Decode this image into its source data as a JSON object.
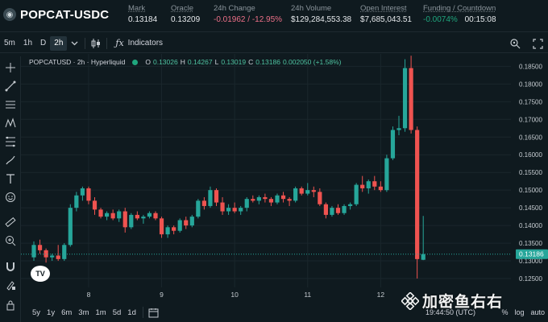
{
  "header": {
    "pair": "POPCAT-USDC",
    "stats": [
      {
        "label": "Mark",
        "value": "0.13184",
        "tone": "neutral",
        "underline": true
      },
      {
        "label": "Oracle",
        "value": "0.13209",
        "tone": "neutral",
        "underline": true
      },
      {
        "label": "24h Change",
        "value": "-0.01962 / -12.95%",
        "tone": "neg",
        "underline": false
      },
      {
        "label": "24h Volume",
        "value": "$129,284,553.38",
        "tone": "neutral",
        "underline": false
      },
      {
        "label": "Open Interest",
        "value": "$7,685,043.51",
        "tone": "neutral",
        "underline": true
      },
      {
        "label": "Funding / Countdown",
        "value_a": "-0.0074%",
        "value_b": "00:15:08",
        "tone": "pos",
        "underline": true
      }
    ]
  },
  "toolbar": {
    "timeframes": [
      "5m",
      "1h",
      "D",
      "2h"
    ],
    "active_timeframe": "2h",
    "indicators_label": "Indicators"
  },
  "legend": {
    "title": "POPCATUSD · 2h · Hyperliquid",
    "o_key": "O",
    "o": "0.13026",
    "h_key": "H",
    "h": "0.14267",
    "l_key": "L",
    "l": "0.13019",
    "c_key": "C",
    "c": "0.13186",
    "change": "0.002050 (+1.58%)"
  },
  "bottom": {
    "ranges": [
      "5y",
      "1y",
      "6m",
      "3m",
      "1m",
      "5d",
      "1d"
    ],
    "clock": "19:44:50 (UTC)",
    "pct": "%",
    "log": "log",
    "auto": "auto"
  },
  "watermark": "加密鱼右右",
  "chart_data": {
    "type": "candlestick",
    "last_price_label": "0.13186",
    "ylim": [
      0.1225,
      0.1885
    ],
    "y_ticks": [
      "0.18500",
      "0.18000",
      "0.17500",
      "0.17000",
      "0.16500",
      "0.16000",
      "0.15500",
      "0.15000",
      "0.14500",
      "0.14000",
      "0.13500",
      "0.13000",
      "0.12500"
    ],
    "x_ticks": [
      {
        "label": "8",
        "index": 9
      },
      {
        "label": "9",
        "index": 21
      },
      {
        "label": "10",
        "index": 33
      },
      {
        "label": "11",
        "index": 45
      },
      {
        "label": "12",
        "index": 57
      }
    ],
    "colors": {
      "up": "#26a69a",
      "down": "#ef5350",
      "bg": "#0f1a1f",
      "grid": "#1a262c"
    },
    "candles": [
      {
        "o": 0.131,
        "h": 0.1355,
        "l": 0.13,
        "c": 0.1345
      },
      {
        "o": 0.1345,
        "h": 0.136,
        "l": 0.132,
        "c": 0.133
      },
      {
        "o": 0.133,
        "h": 0.1335,
        "l": 0.1295,
        "c": 0.131
      },
      {
        "o": 0.131,
        "h": 0.132,
        "l": 0.13,
        "c": 0.1315
      },
      {
        "o": 0.1315,
        "h": 0.1345,
        "l": 0.13,
        "c": 0.1305
      },
      {
        "o": 0.1305,
        "h": 0.135,
        "l": 0.13,
        "c": 0.1345
      },
      {
        "o": 0.1345,
        "h": 0.146,
        "l": 0.134,
        "c": 0.145
      },
      {
        "o": 0.145,
        "h": 0.1495,
        "l": 0.144,
        "c": 0.1485
      },
      {
        "o": 0.1485,
        "h": 0.151,
        "l": 0.147,
        "c": 0.1505
      },
      {
        "o": 0.1505,
        "h": 0.151,
        "l": 0.146,
        "c": 0.147
      },
      {
        "o": 0.147,
        "h": 0.148,
        "l": 0.143,
        "c": 0.1445
      },
      {
        "o": 0.1445,
        "h": 0.145,
        "l": 0.142,
        "c": 0.1425
      },
      {
        "o": 0.1425,
        "h": 0.144,
        "l": 0.1415,
        "c": 0.1435
      },
      {
        "o": 0.1435,
        "h": 0.1445,
        "l": 0.1415,
        "c": 0.142
      },
      {
        "o": 0.142,
        "h": 0.1445,
        "l": 0.141,
        "c": 0.144
      },
      {
        "o": 0.144,
        "h": 0.145,
        "l": 0.138,
        "c": 0.1395
      },
      {
        "o": 0.1395,
        "h": 0.1435,
        "l": 0.139,
        "c": 0.143
      },
      {
        "o": 0.143,
        "h": 0.144,
        "l": 0.1415,
        "c": 0.142
      },
      {
        "o": 0.142,
        "h": 0.143,
        "l": 0.1405,
        "c": 0.1425
      },
      {
        "o": 0.1425,
        "h": 0.144,
        "l": 0.142,
        "c": 0.1435
      },
      {
        "o": 0.1435,
        "h": 0.144,
        "l": 0.1415,
        "c": 0.142
      },
      {
        "o": 0.142,
        "h": 0.1425,
        "l": 0.1365,
        "c": 0.1375
      },
      {
        "o": 0.1375,
        "h": 0.14,
        "l": 0.1365,
        "c": 0.1395
      },
      {
        "o": 0.1395,
        "h": 0.14,
        "l": 0.1375,
        "c": 0.1385
      },
      {
        "o": 0.1385,
        "h": 0.142,
        "l": 0.138,
        "c": 0.1415
      },
      {
        "o": 0.1415,
        "h": 0.1425,
        "l": 0.139,
        "c": 0.14
      },
      {
        "o": 0.14,
        "h": 0.143,
        "l": 0.1395,
        "c": 0.1425
      },
      {
        "o": 0.1425,
        "h": 0.1475,
        "l": 0.142,
        "c": 0.147
      },
      {
        "o": 0.147,
        "h": 0.148,
        "l": 0.1445,
        "c": 0.1455
      },
      {
        "o": 0.1455,
        "h": 0.151,
        "l": 0.145,
        "c": 0.15
      },
      {
        "o": 0.15,
        "h": 0.1505,
        "l": 0.1455,
        "c": 0.1465
      },
      {
        "o": 0.1465,
        "h": 0.148,
        "l": 0.143,
        "c": 0.144
      },
      {
        "o": 0.144,
        "h": 0.146,
        "l": 0.143,
        "c": 0.145
      },
      {
        "o": 0.145,
        "h": 0.1465,
        "l": 0.1435,
        "c": 0.144
      },
      {
        "o": 0.144,
        "h": 0.1455,
        "l": 0.143,
        "c": 0.145
      },
      {
        "o": 0.145,
        "h": 0.148,
        "l": 0.144,
        "c": 0.1475
      },
      {
        "o": 0.1475,
        "h": 0.1485,
        "l": 0.1465,
        "c": 0.147
      },
      {
        "o": 0.147,
        "h": 0.1485,
        "l": 0.146,
        "c": 0.148
      },
      {
        "o": 0.148,
        "h": 0.149,
        "l": 0.1465,
        "c": 0.1475
      },
      {
        "o": 0.1475,
        "h": 0.148,
        "l": 0.1455,
        "c": 0.1465
      },
      {
        "o": 0.1465,
        "h": 0.149,
        "l": 0.146,
        "c": 0.1485
      },
      {
        "o": 0.1485,
        "h": 0.1495,
        "l": 0.1465,
        "c": 0.1475
      },
      {
        "o": 0.1475,
        "h": 0.148,
        "l": 0.1455,
        "c": 0.147
      },
      {
        "o": 0.147,
        "h": 0.151,
        "l": 0.1465,
        "c": 0.1505
      },
      {
        "o": 0.1505,
        "h": 0.151,
        "l": 0.1485,
        "c": 0.149
      },
      {
        "o": 0.149,
        "h": 0.152,
        "l": 0.1485,
        "c": 0.15
      },
      {
        "o": 0.15,
        "h": 0.151,
        "l": 0.148,
        "c": 0.1495
      },
      {
        "o": 0.1495,
        "h": 0.1505,
        "l": 0.1455,
        "c": 0.146
      },
      {
        "o": 0.146,
        "h": 0.1465,
        "l": 0.142,
        "c": 0.143
      },
      {
        "o": 0.143,
        "h": 0.1455,
        "l": 0.1425,
        "c": 0.145
      },
      {
        "o": 0.145,
        "h": 0.146,
        "l": 0.143,
        "c": 0.1435
      },
      {
        "o": 0.1435,
        "h": 0.146,
        "l": 0.143,
        "c": 0.1455
      },
      {
        "o": 0.1455,
        "h": 0.1465,
        "l": 0.1445,
        "c": 0.146
      },
      {
        "o": 0.146,
        "h": 0.152,
        "l": 0.1455,
        "c": 0.1515
      },
      {
        "o": 0.1515,
        "h": 0.154,
        "l": 0.1495,
        "c": 0.1505
      },
      {
        "o": 0.1505,
        "h": 0.153,
        "l": 0.149,
        "c": 0.1525
      },
      {
        "o": 0.1525,
        "h": 0.154,
        "l": 0.15,
        "c": 0.151
      },
      {
        "o": 0.151,
        "h": 0.1525,
        "l": 0.1495,
        "c": 0.15
      },
      {
        "o": 0.15,
        "h": 0.16,
        "l": 0.1495,
        "c": 0.159
      },
      {
        "o": 0.159,
        "h": 0.168,
        "l": 0.1585,
        "c": 0.167
      },
      {
        "o": 0.167,
        "h": 0.171,
        "l": 0.1655,
        "c": 0.1675
      },
      {
        "o": 0.1675,
        "h": 0.187,
        "l": 0.1665,
        "c": 0.1845
      },
      {
        "o": 0.1845,
        "h": 0.188,
        "l": 0.166,
        "c": 0.167
      },
      {
        "o": 0.167,
        "h": 0.168,
        "l": 0.125,
        "c": 0.1305
      },
      {
        "o": 0.1303,
        "h": 0.1427,
        "l": 0.1302,
        "c": 0.1319
      }
    ]
  }
}
